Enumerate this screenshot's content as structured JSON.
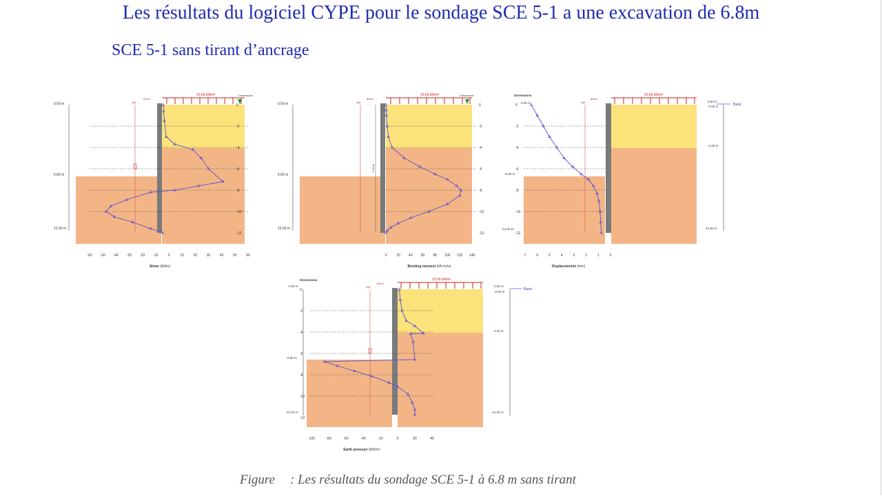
{
  "slide": {
    "title": "Les résultats du logiciel CYPE pour le sondage SCE 5-1 a une excavation de 6.8m",
    "subtitle": "SCE 5-1 sans tirant d’ancrage"
  },
  "caption": {
    "label": "Figure",
    "text": ": Les résultats du sondage SCE 5-1 à 6.8 m sans tirant"
  },
  "colors": {
    "soil_top": "#fbe27a",
    "soil_bottom": "#f3b586",
    "wall": "#7a7a7a",
    "curve": "#5a4fcf",
    "load": "#cc2222",
    "marker": "#1a9a1a"
  },
  "panels": [
    {
      "id": "shear",
      "axis_title": "Shear",
      "axis_unit": "(kN/m)",
      "load_label": "10.00 kN/m²",
      "dist_label": "60cm",
      "header_label": "Dimensions",
      "depth_labels": [
        "0.00 m",
        "6.80 m",
        "12.00 m"
      ],
      "y_ticks": [
        "0",
        "-2",
        "-4",
        "-6",
        "-8",
        "-10",
        "-12"
      ],
      "x_ticks": [
        "-60",
        "-50",
        "-40",
        "-30",
        "-20",
        "-10",
        "0",
        "10",
        "20",
        "30",
        "40",
        "50",
        "60"
      ],
      "opt_label": "Opt",
      "chart_data": {
        "type": "line",
        "xlabel": "Shear",
        "x": [
          0.5,
          0.8,
          1.5,
          3,
          10,
          25,
          32,
          38,
          50,
          30,
          10,
          -10,
          -30,
          -43,
          -47,
          -40,
          -25,
          -10,
          0
        ],
        "y": [
          0,
          -0.6,
          -1.5,
          -3,
          -3.7,
          -4.2,
          -5,
          -6,
          -7.2,
          -7.6,
          -8,
          -8.2,
          -8.9,
          -9.5,
          -10,
          -10.5,
          -11,
          -11.6,
          -12
        ]
      }
    },
    {
      "id": "moment",
      "axis_title": "Bending moment",
      "axis_unit": "(kN·m/m)",
      "load_label": "10.00 kN/m²",
      "dist_label": "60cm",
      "header_label": "Dimensions",
      "depth_labels": [
        "0.00 m",
        "6.80 m",
        "12.00 m"
      ],
      "y_ticks": [
        "0",
        "-2",
        "-4",
        "-6",
        "-8",
        "-10",
        "-12"
      ],
      "x_ticks": [
        "0",
        "20",
        "40",
        "60",
        "80",
        "100",
        "120",
        "140"
      ],
      "opt_label": "Opt",
      "ruler_label": "1.20 m",
      "chart_data": {
        "type": "line",
        "xlabel": "Bending moment",
        "x": [
          0,
          0.5,
          1,
          2,
          4,
          10,
          30,
          55,
          80,
          100,
          115,
          122,
          120,
          100,
          70,
          40,
          20,
          8,
          2,
          0
        ],
        "y": [
          0,
          -0.5,
          -1,
          -2,
          -3,
          -4,
          -5,
          -5.8,
          -6.5,
          -7,
          -7.6,
          -8,
          -8.5,
          -9.3,
          -10,
          -10.6,
          -11.1,
          -11.5,
          -11.8,
          -12
        ]
      }
    },
    {
      "id": "displacement",
      "axis_title": "Displacements",
      "axis_unit": "(mm)",
      "load_label": "10.00 kN/m²",
      "dist_label": "60cm",
      "header_label": "Dimensions",
      "top_label": "0.00 m",
      "legend_label": "Basic",
      "right_labels": [
        "0.50 m",
        "-0.50 m",
        "-4.20 m",
        "-12.00 m"
      ],
      "depth_labels": [
        "0.00 m",
        "-6.80 m",
        "-12.00 m"
      ],
      "y_ticks": [
        "0",
        "-2",
        "-4",
        "-6",
        "-8",
        "-10",
        "-12"
      ],
      "x_ticks": [
        "7",
        "6",
        "5",
        "4",
        "3",
        "2",
        "1",
        "0"
      ],
      "opt_label": "Opt",
      "chart_data": {
        "type": "line",
        "xlabel": "Displacements",
        "x": [
          6.5,
          6,
          5.5,
          5,
          4.4,
          3.8,
          3.1,
          2.4,
          1.8,
          1.4,
          1.1,
          0.95,
          0.85,
          0.8,
          0.75
        ],
        "y": [
          0,
          -1,
          -2,
          -3,
          -4,
          -5,
          -5.8,
          -6.5,
          -7,
          -7.6,
          -8.3,
          -9,
          -10,
          -11,
          -12
        ]
      }
    },
    {
      "id": "pressure",
      "axis_title": "Earth pressure",
      "axis_unit": "(kN/m²)",
      "load_label": "10.00 kN/m²",
      "dist_label": "60cm",
      "header_label": "Dimensions",
      "top_label": "0.00 m",
      "legend_label": "Basic",
      "right_labels": [
        "0.00 m",
        "-0.50 m",
        "4.20 m",
        "-12.00 m"
      ],
      "depth_labels": [
        "6.80 m",
        "-12.00 m"
      ],
      "y_ticks": [
        "0",
        "-2",
        "-4",
        "-6",
        "-8",
        "-10",
        "-12"
      ],
      "x_ticks": [
        "-100",
        "-80",
        "-60",
        "-40",
        "-20",
        "0",
        "20",
        "40"
      ],
      "opt_label": "Opt",
      "chart_data": {
        "type": "line",
        "xlabel": "Earth pressure",
        "x": [
          2,
          3,
          5,
          10,
          20,
          30,
          15,
          18,
          20,
          -85,
          -70,
          -50,
          -30,
          -10,
          0,
          12,
          17,
          20,
          20
        ],
        "y": [
          0,
          -1,
          -2,
          -3,
          -3.5,
          -4.2,
          -4.25,
          -5,
          -6.7,
          -6.9,
          -7.3,
          -7.8,
          -8.3,
          -8.9,
          -9.3,
          -10,
          -10.8,
          -11.5,
          -12
        ]
      }
    }
  ]
}
